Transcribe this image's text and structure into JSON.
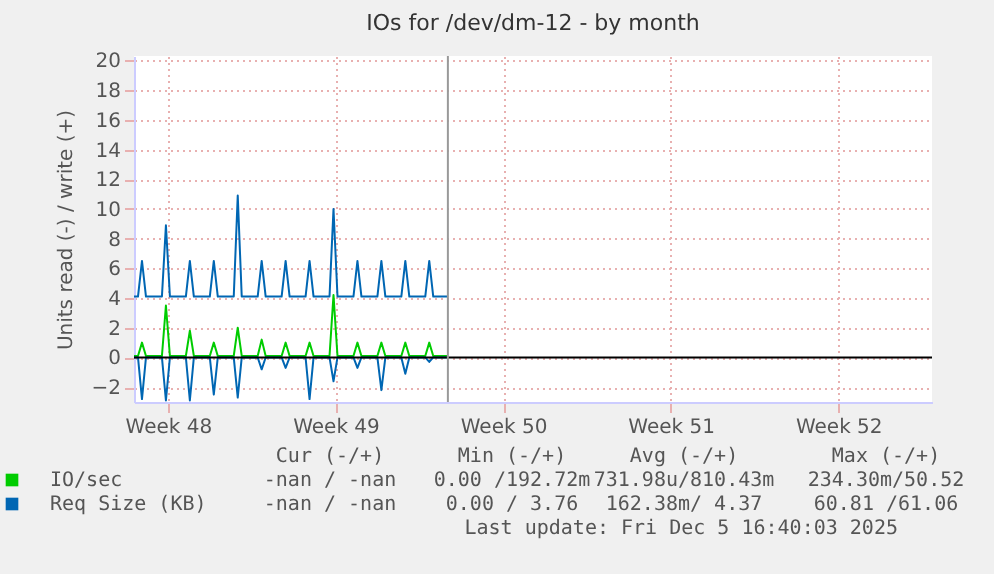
{
  "chart_data": {
    "type": "line",
    "title": "IOs for /dev/dm-12 - by month",
    "ylabel": "Units read (-) / write (+)",
    "x": [
      "2025-11-22T14:00",
      "2025-11-22T18:00",
      "2025-11-22T22:00",
      "2025-11-23T02:00",
      "2025-11-23T18:00",
      "2025-11-23T22:00",
      "2025-11-24T02:00",
      "2025-11-24T18:00",
      "2025-11-24T22:00",
      "2025-11-25T02:00",
      "2025-11-25T18:00",
      "2025-11-25T22:00",
      "2025-11-26T02:00",
      "2025-11-26T18:00",
      "2025-11-26T22:00",
      "2025-11-27T02:00",
      "2025-11-27T18:00",
      "2025-11-27T22:00",
      "2025-11-28T02:00",
      "2025-11-28T18:00",
      "2025-11-28T22:00",
      "2025-11-29T02:00",
      "2025-11-29T18:00",
      "2025-11-29T22:00",
      "2025-11-30T02:00",
      "2025-11-30T18:00",
      "2025-11-30T22:00",
      "2025-12-01T02:00",
      "2025-12-01T18:00",
      "2025-12-01T22:00",
      "2025-12-02T02:00",
      "2025-12-02T18:00",
      "2025-12-02T22:00",
      "2025-12-03T02:00",
      "2025-12-03T18:00",
      "2025-12-03T22:00",
      "2025-12-04T02:00",
      "2025-12-04T18:00",
      "2025-12-04T22:00",
      "2025-12-05T02:00",
      "2025-12-05T16:40"
    ],
    "series": [
      {
        "name": "IO/sec",
        "color": "#00cc00",
        "values": [
          0.1,
          0.1,
          1.0,
          0.1,
          0.1,
          3.5,
          0.1,
          0.1,
          1.8,
          0.1,
          0.1,
          1.0,
          0.1,
          0.1,
          2.0,
          0.1,
          0.1,
          1.2,
          0.1,
          0.1,
          1.0,
          0.1,
          0.1,
          1.0,
          0.1,
          0.1,
          4.2,
          0.1,
          0.1,
          1.0,
          0.1,
          0.1,
          1.0,
          0.1,
          0.1,
          1.0,
          0.1,
          0.1,
          1.0,
          0.1,
          0.1
        ]
      },
      {
        "name": "Req Size (KB)",
        "color": "#0066b3",
        "values": [
          4.1,
          4.1,
          6.5,
          4.1,
          4.1,
          8.9,
          4.1,
          4.1,
          6.5,
          4.1,
          4.1,
          6.5,
          4.1,
          4.1,
          10.9,
          4.1,
          4.1,
          6.5,
          4.1,
          4.1,
          6.5,
          4.1,
          4.1,
          6.5,
          4.1,
          4.1,
          10.0,
          4.1,
          4.1,
          6.5,
          4.1,
          4.1,
          6.5,
          4.1,
          4.1,
          6.5,
          4.1,
          4.1,
          6.5,
          4.1,
          4.1
        ]
      },
      {
        "color": "#0066b3",
        "values": [
          0,
          0,
          -2.8,
          0,
          0,
          -2.9,
          0,
          0,
          -2.9,
          0,
          0,
          -2.5,
          0,
          0,
          -2.7,
          0,
          0,
          -0.8,
          0,
          0,
          -0.7,
          0,
          0,
          -2.8,
          0,
          0,
          -1.6,
          0,
          0,
          -0.7,
          0,
          0,
          -2.2,
          0,
          0,
          -1.1,
          0,
          0,
          -0.3,
          0,
          0
        ]
      }
    ],
    "xlim": [
      "2025-11-22T14:00",
      "2025-12-25T22:00"
    ],
    "xticks": [
      {
        "value": "2025-11-24",
        "label": "Week 48"
      },
      {
        "value": "2025-12-01",
        "label": "Week 49"
      },
      {
        "value": "2025-12-08",
        "label": "Week 50"
      },
      {
        "value": "2025-12-15",
        "label": "Week 51"
      },
      {
        "value": "2025-12-22",
        "label": "Week 52"
      }
    ],
    "ylim": [
      -3,
      20.3
    ],
    "yticks": [
      -2,
      0,
      2,
      4,
      6,
      8,
      10,
      12,
      14,
      16,
      18,
      20
    ],
    "ref_lines": [
      {
        "axis": "y",
        "value": 0,
        "color": "#000000"
      },
      {
        "axis": "x",
        "value": "2025-12-05T16:40",
        "color": "#999999"
      }
    ],
    "grid": true,
    "legend": "bottom",
    "line_style": "solid",
    "marker": "none",
    "annotations": [
      "Cur (-/+)",
      "Min (-/+)",
      "Avg (-/+)",
      "Max (-/+)",
      "-nan / -nan",
      "0.00 /192.72m",
      "731.98u/810.43m",
      "234.30m/50.52",
      "-nan / -nan",
      "0.00 / 3.76",
      "162.38m/ 4.37",
      "60.81 /61.06",
      "Last update: Fri Dec  5 16:40:03 2025"
    ]
  }
}
